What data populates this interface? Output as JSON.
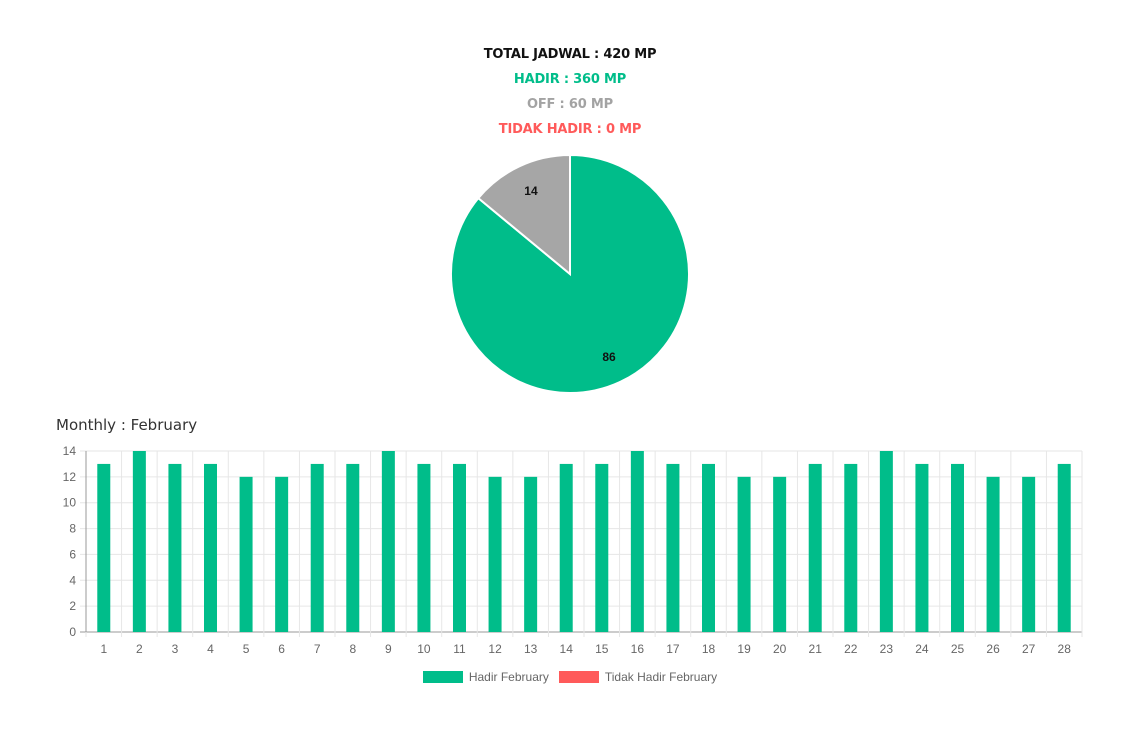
{
  "summary": {
    "total": "TOTAL JADWAL : 420 MP",
    "hadir": "HADIR : 360 MP",
    "off": "OFF : 60 MP",
    "tidak_hadir": "TIDAK HADIR : 0 MP"
  },
  "colors": {
    "total": "#111111",
    "hadir": "#00bd8a",
    "off": "#a3a3a3",
    "tidak_hadir": "#ff5a5a"
  },
  "monthly": {
    "title": "Monthly : February"
  },
  "chart_data": [
    {
      "type": "pie",
      "slices": [
        {
          "label": "86",
          "value": 86,
          "color": "#00bd8a"
        },
        {
          "label": "14",
          "value": 14,
          "color": "#a6a6a6"
        }
      ]
    },
    {
      "type": "bar",
      "categories": [
        "1",
        "2",
        "3",
        "4",
        "5",
        "6",
        "7",
        "8",
        "9",
        "10",
        "11",
        "12",
        "13",
        "14",
        "15",
        "16",
        "17",
        "18",
        "19",
        "20",
        "21",
        "22",
        "23",
        "24",
        "25",
        "26",
        "27",
        "28"
      ],
      "series": [
        {
          "name": "Hadir February",
          "color": "#00bd8a",
          "values": [
            13,
            14,
            13,
            13,
            12,
            12,
            13,
            13,
            14,
            13,
            13,
            12,
            12,
            13,
            13,
            14,
            13,
            13,
            12,
            12,
            13,
            13,
            14,
            13,
            13,
            12,
            12,
            13
          ]
        },
        {
          "name": "Tidak Hadir February",
          "color": "#ff5a5a",
          "values": [
            0,
            0,
            0,
            0,
            0,
            0,
            0,
            0,
            0,
            0,
            0,
            0,
            0,
            0,
            0,
            0,
            0,
            0,
            0,
            0,
            0,
            0,
            0,
            0,
            0,
            0,
            0,
            0
          ]
        }
      ],
      "ylim": [
        0,
        14
      ],
      "yticks": [
        0,
        2,
        4,
        6,
        8,
        10,
        12,
        14
      ],
      "grid": true,
      "legend": "bottom"
    }
  ]
}
